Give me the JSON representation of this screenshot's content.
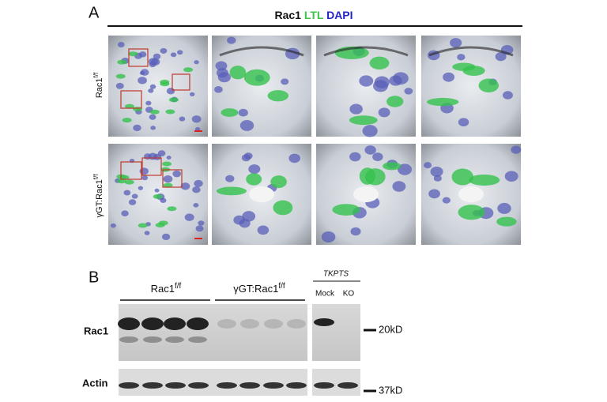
{
  "panel_a": {
    "label": "A",
    "title": {
      "part1": "Rac1",
      "part2": "LTL",
      "part3": "DAPI"
    },
    "rows": [
      {
        "base": "Rac1",
        "sup": "f/f"
      },
      {
        "base": "γGT:Rac1",
        "sup": "f/f"
      }
    ]
  },
  "panel_b": {
    "label": "B",
    "groups": [
      {
        "base": "Rac1",
        "sup": "f/f"
      },
      {
        "base": "γGT:Rac1",
        "sup": "f/f"
      }
    ],
    "cell_line": {
      "name": "TKPTS",
      "lanes": [
        "Mock",
        "KO"
      ]
    },
    "blots": [
      {
        "name": "Rac1",
        "marker": "20kD"
      },
      {
        "name": "Actin",
        "marker": "37kD"
      }
    ]
  }
}
